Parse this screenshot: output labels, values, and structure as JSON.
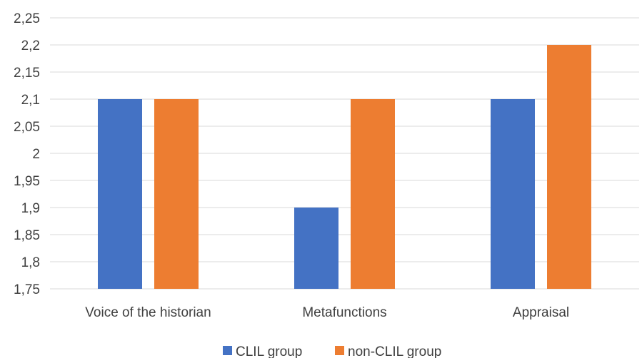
{
  "chart_data": {
    "type": "bar",
    "title": "",
    "xlabel": "",
    "ylabel": "",
    "categories": [
      "Voice of the historian",
      "Metafunctions",
      "Appraisal"
    ],
    "series": [
      {
        "name": "CLIL group",
        "values": [
          2.1,
          1.9,
          2.1
        ],
        "color": "#4472C4"
      },
      {
        "name": "non-CLIL group",
        "values": [
          2.1,
          2.1,
          2.2
        ],
        "color": "#ED7D31"
      }
    ],
    "ylim": [
      1.75,
      2.25
    ],
    "yticks": [
      "1,75",
      "1,8",
      "1,85",
      "1,9",
      "1,95",
      "2",
      "2,05",
      "2,1",
      "2,15",
      "2,2",
      "2,25"
    ],
    "grid": true,
    "legend_position": "bottom",
    "gridline_color": "#D9D9D9"
  }
}
